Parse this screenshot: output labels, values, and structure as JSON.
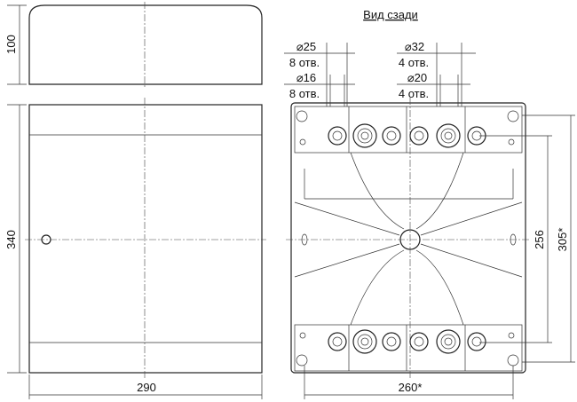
{
  "title": "Вид сзади",
  "dimensions": {
    "top_height": "100",
    "front_height": "340",
    "front_width": "290",
    "rear_width": "260*",
    "rear_height_inner": "256",
    "rear_height_outer": "305*"
  },
  "holes": [
    {
      "diameter": "⌀25",
      "count": "8 отв."
    },
    {
      "diameter": "⌀16",
      "count": "8 отв."
    },
    {
      "diameter": "⌀32",
      "count": "4 отв."
    },
    {
      "diameter": "⌀20",
      "count": "4 отв."
    }
  ]
}
